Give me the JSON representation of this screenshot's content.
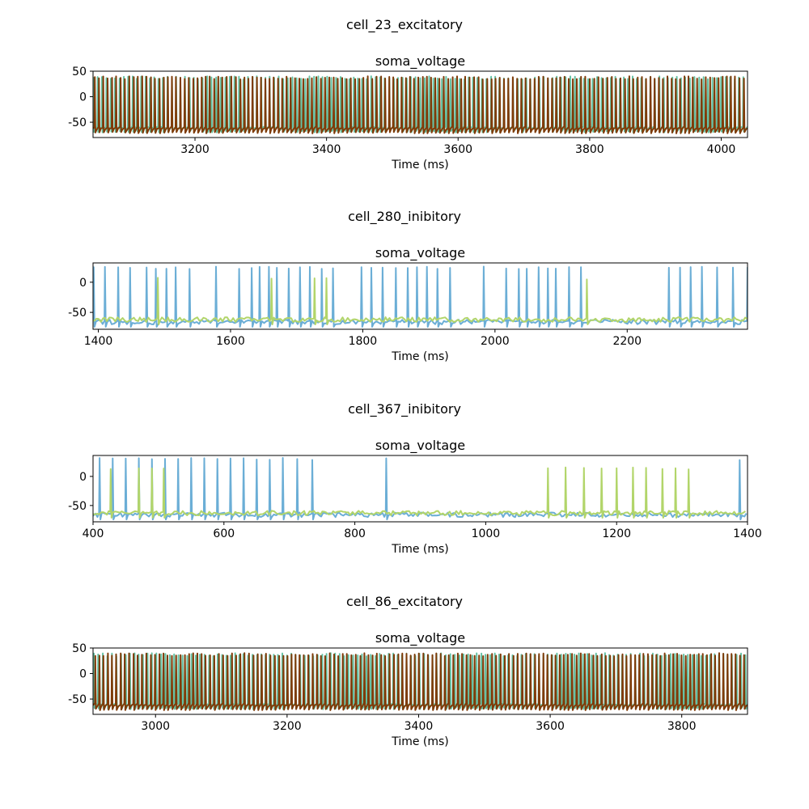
{
  "chart_data": [
    {
      "type": "line",
      "suptitle": "cell_23_excitatory",
      "title": "soma_voltage",
      "xlabel": "Time (ms)",
      "ylabel": "",
      "xlim": [
        3045,
        4040
      ],
      "ylim": [
        -80,
        50
      ],
      "xticks": [
        3200,
        3400,
        3600,
        3800,
        4000
      ],
      "yticks": [
        50,
        0,
        -50
      ],
      "grid": false,
      "series": [
        {
          "color": "#66c2a5",
          "pattern": "regular_spiking",
          "isi_ms": 6.7,
          "peak": 40,
          "trough": -70,
          "rest": -62,
          "phase": 0
        },
        {
          "color": "#7f3b08",
          "pattern": "regular_spiking",
          "isi_ms": 6.5,
          "peak": 40,
          "trough": -72,
          "rest": -62,
          "phase": 3
        }
      ]
    },
    {
      "type": "line",
      "suptitle": "cell_280_inibitory",
      "title": "soma_voltage",
      "xlabel": "Time (ms)",
      "ylabel": "",
      "xlim": [
        1392,
        2382
      ],
      "ylim": [
        -78,
        32
      ],
      "xticks": [
        1400,
        1600,
        1800,
        2000,
        2200
      ],
      "yticks": [
        0,
        -50
      ],
      "grid": false,
      "series": [
        {
          "color": "#6baed6",
          "pattern": "sparse_spikes",
          "baseline": -66,
          "peak": 26,
          "spike_times": [
            1393,
            1410,
            1430,
            1448,
            1473,
            1487,
            1503,
            1517,
            1538,
            1578,
            1613,
            1632,
            1644,
            1658,
            1670,
            1688,
            1705,
            1720,
            1738,
            1755,
            1798,
            1813,
            1830,
            1850,
            1868,
            1882,
            1897,
            1913,
            1932,
            1983,
            2017,
            2036,
            2048,
            2066,
            2080,
            2092,
            2112,
            2130,
            2263,
            2280,
            2296,
            2313,
            2336,
            2360,
            2382
          ]
        },
        {
          "color": "#b2d56a",
          "pattern": "sparse_spikes",
          "baseline": -62,
          "peak": 8,
          "spike_times": [
            1490,
            1662,
            1727,
            1745,
            2139
          ]
        }
      ]
    },
    {
      "type": "line",
      "suptitle": "cell_367_inibitory",
      "title": "soma_voltage",
      "xlabel": "Time (ms)",
      "ylabel": "",
      "xlim": [
        400,
        1400
      ],
      "ylim": [
        -78,
        36
      ],
      "xticks": [
        400,
        600,
        800,
        1000,
        1200,
        1400
      ],
      "yticks": [
        0,
        -50
      ],
      "grid": false,
      "series": [
        {
          "color": "#6baed6",
          "pattern": "sparse_spikes",
          "baseline": -66,
          "peak": 32,
          "spike_times": [
            410,
            430,
            450,
            470,
            490,
            510,
            530,
            550,
            570,
            590,
            610,
            630,
            650,
            670,
            690,
            712,
            735,
            848,
            1388
          ]
        },
        {
          "color": "#b2d56a",
          "pattern": "sparse_spikes",
          "baseline": -63,
          "peak": 16,
          "spike_times": [
            427,
            470,
            490,
            508,
            1095,
            1122,
            1150,
            1177,
            1200,
            1225,
            1245,
            1270,
            1290,
            1310
          ]
        }
      ]
    },
    {
      "type": "line",
      "suptitle": "cell_86_excitatory",
      "title": "soma_voltage",
      "xlabel": "Time (ms)",
      "ylabel": "",
      "xlim": [
        2905,
        3900
      ],
      "ylim": [
        -80,
        50
      ],
      "xticks": [
        3000,
        3200,
        3400,
        3600,
        3800
      ],
      "yticks": [
        50,
        0,
        -50
      ],
      "grid": false,
      "series": [
        {
          "color": "#66c2a5",
          "pattern": "regular_spiking",
          "isi_ms": 6.7,
          "peak": 40,
          "trough": -70,
          "rest": -62,
          "phase": 1
        },
        {
          "color": "#7f3b08",
          "pattern": "regular_spiking",
          "isi_ms": 6.5,
          "peak": 40,
          "trough": -72,
          "rest": -62,
          "phase": 4
        }
      ]
    }
  ]
}
